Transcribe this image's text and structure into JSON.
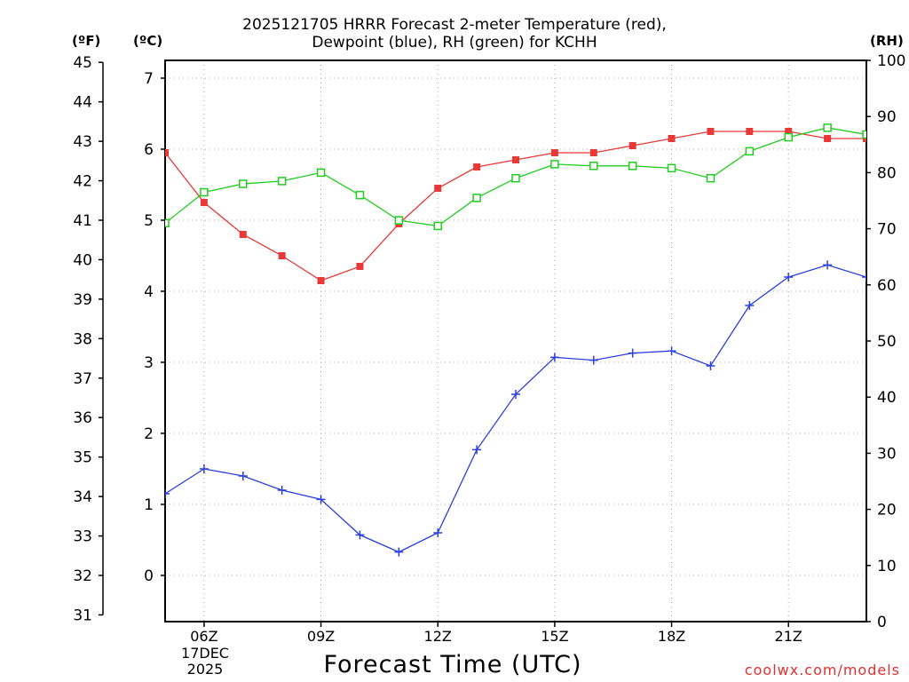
{
  "chart_data": {
    "type": "line",
    "title_line1": "2025121705 HRRR Forecast 2-meter Temperature (red),",
    "title_line2": "Dewpoint (blue), RH (green) for KCHH",
    "xlabel": "Forecast Time (UTC)",
    "x_hours": [
      5,
      6,
      7,
      8,
      9,
      10,
      11,
      12,
      13,
      14,
      15,
      16,
      17,
      18,
      19,
      20,
      21,
      22,
      23
    ],
    "x_ticks": [
      {
        "hour": 6,
        "label": "06Z"
      },
      {
        "hour": 9,
        "label": "09Z"
      },
      {
        "hour": 12,
        "label": "12Z"
      },
      {
        "hour": 15,
        "label": "15Z"
      },
      {
        "hour": 18,
        "label": "18Z"
      },
      {
        "hour": 21,
        "label": "21Z"
      }
    ],
    "date_label_line1": "17DEC",
    "date_label_line2": "2025",
    "xlim": [
      5,
      23
    ],
    "left_axis_f": {
      "unit_label": "(ºF)",
      "ticks": [
        31,
        32,
        33,
        34,
        35,
        36,
        37,
        38,
        39,
        40,
        41,
        42,
        43,
        44,
        45
      ]
    },
    "left_axis_c": {
      "unit_label": "(ºC)",
      "ticks": [
        0,
        1,
        2,
        3,
        4,
        5,
        6,
        7
      ],
      "ylim": [
        -0.65,
        7.25
      ]
    },
    "right_axis_rh": {
      "unit_label": "(RH)",
      "ticks": [
        0,
        10,
        20,
        30,
        40,
        50,
        60,
        70,
        80,
        90,
        100
      ],
      "ylim": [
        0,
        100
      ]
    },
    "series": [
      {
        "name": "Temperature",
        "axis": "c",
        "color": "#e83838",
        "marker": "filled-square",
        "values": [
          5.95,
          5.25,
          4.8,
          4.5,
          4.15,
          4.35,
          4.95,
          5.45,
          5.75,
          5.85,
          5.95,
          5.95,
          6.05,
          6.15,
          6.25,
          6.25,
          6.25,
          6.15,
          6.15
        ]
      },
      {
        "name": "Dewpoint",
        "axis": "c",
        "color": "#2b3fe0",
        "marker": "plus",
        "values": [
          1.15,
          1.5,
          1.4,
          1.2,
          1.07,
          0.57,
          0.33,
          0.6,
          1.77,
          2.55,
          3.07,
          3.03,
          3.13,
          3.16,
          2.95,
          3.8,
          4.2,
          4.37,
          4.2
        ]
      },
      {
        "name": "RH",
        "axis": "rh",
        "color": "#22cc22",
        "marker": "open-square",
        "values": [
          71,
          76.5,
          78,
          78.5,
          80,
          76,
          71.5,
          70.5,
          75.5,
          79,
          81.5,
          81.2,
          81.2,
          80.8,
          79,
          83.8,
          86.3,
          88,
          86.8
        ]
      }
    ],
    "credit": "coolwx.com/models"
  }
}
